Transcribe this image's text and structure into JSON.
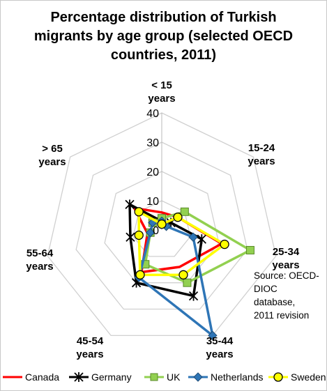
{
  "chart_data": {
    "type": "radar",
    "title": "Percentage distribution of Turkish migrants by age group (selected OECD countries, 2011)",
    "title_lines": [
      "Percentage distribution of Turkish",
      "migrants by age group (selected OECD",
      "countries, 2011)"
    ],
    "categories": [
      "< 15 years",
      "15-24 years",
      "25-34 years",
      "35-44 years",
      "45-54 years",
      "55-64 years",
      "> 65 years"
    ],
    "category_lines": [
      [
        "< 15",
        "years"
      ],
      [
        "15-24",
        "years"
      ],
      [
        "25-34",
        "years"
      ],
      [
        "35-44",
        "years"
      ],
      [
        "45-54",
        "years"
      ],
      [
        "55-64",
        "years"
      ],
      [
        "> 65",
        "years"
      ]
    ],
    "radial_ticks": [
      0,
      10,
      20,
      30,
      40
    ],
    "rlim": [
      0,
      40
    ],
    "grid": true,
    "legend_position": "bottom",
    "series": [
      {
        "name": "Canada",
        "color": "#ff0000",
        "marker": "none",
        "values": [
          6,
          7,
          21,
          14,
          16,
          5,
          12
        ]
      },
      {
        "name": "Germany",
        "color": "#000000",
        "marker": "star",
        "values": [
          3,
          4,
          14,
          25,
          20,
          11,
          14
        ]
      },
      {
        "name": "UK",
        "color": "#92d050",
        "marker": "square",
        "values": [
          4,
          10,
          31,
          20,
          13,
          4,
          4
        ]
      },
      {
        "name": "Netherlands",
        "color": "#2e75b6",
        "marker": "diamond",
        "values": [
          3,
          2,
          11,
          40,
          18,
          4,
          4
        ]
      },
      {
        "name": "Sweden",
        "color": "#ffff00",
        "marker": "circle",
        "values": [
          2,
          7,
          22,
          17,
          17,
          8,
          10
        ]
      }
    ],
    "annotation_lines": [
      "Source: OECD-",
      "DIOC",
      "database,",
      "2011 revision"
    ]
  }
}
